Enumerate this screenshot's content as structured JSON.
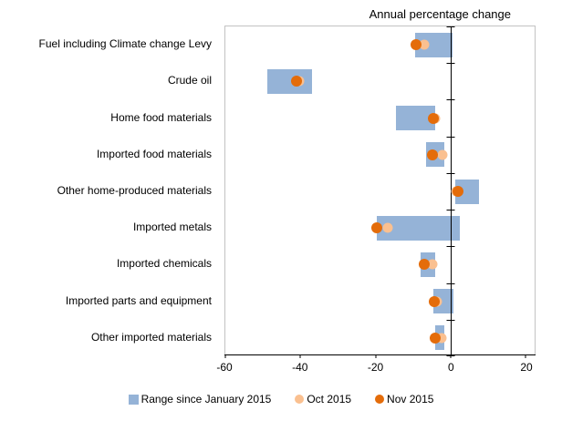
{
  "chart_data": {
    "type": "bar",
    "subtype": "horizontal-range-with-dots",
    "title": "Annual percentage change",
    "categories": [
      "Fuel including Climate change Levy",
      "Crude oil",
      "Home food materials",
      "Imported food materials",
      "Other home-produced materials",
      "Imported metals",
      "Imported chemicals",
      "Imported parts and equipment",
      "Other imported materials"
    ],
    "series": [
      {
        "name": "Range since January 2015",
        "type": "range",
        "color": "#95B3D7",
        "ranges": [
          [
            -9.5,
            0.5
          ],
          [
            -48.7,
            -36.9
          ],
          [
            -14.6,
            -4.1
          ],
          [
            -6.5,
            -1.6
          ],
          [
            1.3,
            7.6
          ],
          [
            -19.6,
            2.5
          ],
          [
            -8.1,
            -4.0
          ],
          [
            -4.5,
            0.7
          ],
          [
            -4.0,
            -1.6
          ]
        ]
      },
      {
        "name": "Oct 2015",
        "type": "dot",
        "color": "#FAC090",
        "values": [
          -7.1,
          -40.4,
          -4.1,
          -2.2,
          1.5,
          -16.7,
          -4.8,
          -3.5,
          -2.5
        ]
      },
      {
        "name": "Nov 2015",
        "type": "dot",
        "color": "#E46C0A",
        "values": [
          -9.2,
          -41.0,
          -4.5,
          -4.9,
          2.1,
          -19.7,
          -7.1,
          -4.4,
          -4.0
        ]
      }
    ],
    "xlim": [
      -60,
      22.4
    ],
    "x_ticks": [
      -60,
      -40,
      -20,
      0,
      20
    ],
    "x_tick_labels": [
      "-60",
      "-40",
      "-20",
      "0",
      "20"
    ],
    "zero_axis": 0,
    "grid": false,
    "legend_position": "bottom",
    "colors": {
      "range_bar": "#95B3D7",
      "oct_dot": "#FAC090",
      "nov_dot": "#E46C0A",
      "axis_line": "#000000",
      "plot_border": "#C3C3C3",
      "text": "#000000"
    }
  }
}
